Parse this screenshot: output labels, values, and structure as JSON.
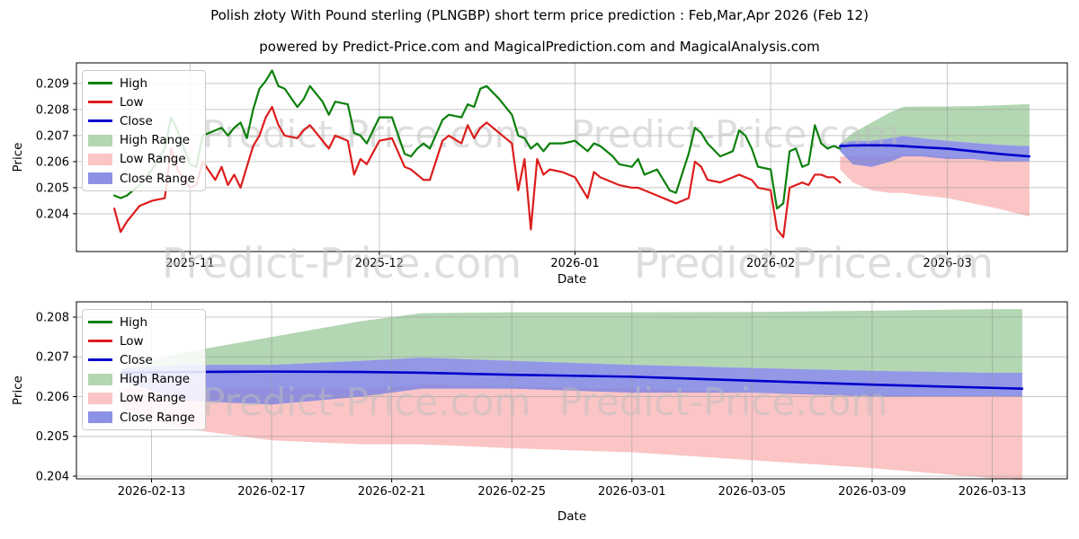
{
  "title": "Polish złoty With Pound sterling (PLNGBP) short term price prediction : Feb,Mar,Apr 2026 (Feb 12)",
  "subtitle": "powered by Predict-Price.com and MagicalPrediction.com and MagicalAnalysis.com",
  "watermark_text": "Predict-Price.com",
  "colors": {
    "high": "#0c800c",
    "low": "#dd1d1d",
    "close": "#0000cc",
    "high_range": "#b3d6b3",
    "low_range": "#fbc5c5",
    "close_range": "#7f85e2",
    "grid": "#999999",
    "axis": "#000000",
    "watermark": "#bdbdbd"
  },
  "legend": {
    "items": [
      {
        "label": "High",
        "kind": "line",
        "color_key": "high"
      },
      {
        "label": "Low",
        "kind": "line",
        "color_key": "low"
      },
      {
        "label": "Close",
        "kind": "line",
        "color_key": "close"
      },
      {
        "label": "High Range",
        "kind": "patch",
        "color_key": "high_range"
      },
      {
        "label": "Low Range",
        "kind": "patch",
        "color_key": "low_range"
      },
      {
        "label": "Close Range",
        "kind": "patch",
        "color_key": "close_range"
      }
    ]
  },
  "chart_data": [
    {
      "type": "line",
      "title": "",
      "xlabel": "Date",
      "ylabel": "Price",
      "grid": true,
      "legend_position": "upper left",
      "xlim": [
        "2025-10-14",
        "2026-03-20"
      ],
      "ylim": [
        0.20255,
        0.20979
      ],
      "y_ticks": [
        0.209,
        0.208,
        0.207,
        0.206,
        0.205,
        0.204
      ],
      "x_ticks": [
        {
          "label": "2025-11",
          "date": "2025-11-01"
        },
        {
          "label": "2025-12",
          "date": "2025-12-01"
        },
        {
          "label": "2026-01",
          "date": "2026-01-01"
        },
        {
          "label": "2026-02",
          "date": "2026-02-01"
        },
        {
          "label": "2026-03",
          "date": "2026-03-01"
        }
      ],
      "historical": {
        "dates": [
          "2025-10-20",
          "2025-10-21",
          "2025-10-22",
          "2025-10-24",
          "2025-10-26",
          "2025-10-28",
          "2025-10-29",
          "2025-10-30",
          "2025-11-01",
          "2025-11-02",
          "2025-11-03",
          "2025-11-05",
          "2025-11-06",
          "2025-11-07",
          "2025-11-08",
          "2025-11-09",
          "2025-11-10",
          "2025-11-11",
          "2025-11-12",
          "2025-11-13",
          "2025-11-14",
          "2025-11-15",
          "2025-11-16",
          "2025-11-18",
          "2025-11-19",
          "2025-11-20",
          "2025-11-22",
          "2025-11-23",
          "2025-11-24",
          "2025-11-26",
          "2025-11-27",
          "2025-11-28",
          "2025-11-29",
          "2025-12-01",
          "2025-12-03",
          "2025-12-05",
          "2025-12-06",
          "2025-12-07",
          "2025-12-08",
          "2025-12-09",
          "2025-12-11",
          "2025-12-12",
          "2025-12-14",
          "2025-12-15",
          "2025-12-16",
          "2025-12-17",
          "2025-12-18",
          "2025-12-20",
          "2025-12-21",
          "2025-12-22",
          "2025-12-23",
          "2025-12-24",
          "2025-12-25",
          "2025-12-26",
          "2025-12-27",
          "2025-12-28",
          "2025-12-30",
          "2026-01-01",
          "2026-01-03",
          "2026-01-04",
          "2026-01-05",
          "2026-01-07",
          "2026-01-08",
          "2026-01-10",
          "2026-01-11",
          "2026-01-12",
          "2026-01-14",
          "2026-01-16",
          "2026-01-17",
          "2026-01-19",
          "2026-01-20",
          "2026-01-21",
          "2026-01-22",
          "2026-01-24",
          "2026-01-26",
          "2026-01-27",
          "2026-01-28",
          "2026-01-29",
          "2026-01-30",
          "2026-02-01",
          "2026-02-02",
          "2026-02-03",
          "2026-02-04",
          "2026-02-05",
          "2026-02-06",
          "2026-02-07",
          "2026-02-08",
          "2026-02-09",
          "2026-02-10",
          "2026-02-11",
          "2026-02-12"
        ],
        "high": [
          0.2047,
          0.2046,
          0.2047,
          0.2051,
          0.2057,
          0.2065,
          0.2077,
          0.2072,
          0.2059,
          0.2058,
          0.207,
          0.2072,
          0.2073,
          0.207,
          0.2073,
          0.2075,
          0.2069,
          0.208,
          0.2088,
          0.2091,
          0.2095,
          0.2089,
          0.2088,
          0.2081,
          0.2084,
          0.2089,
          0.2083,
          0.2078,
          0.2083,
          0.2082,
          0.2071,
          0.207,
          0.2067,
          0.2077,
          0.2077,
          0.2063,
          0.2062,
          0.2065,
          0.2067,
          0.2065,
          0.2076,
          0.2078,
          0.2077,
          0.2082,
          0.2081,
          0.2088,
          0.2089,
          0.2084,
          0.2081,
          0.2078,
          0.207,
          0.2069,
          0.2065,
          0.2067,
          0.2064,
          0.2067,
          0.2067,
          0.2068,
          0.2064,
          0.2067,
          0.2066,
          0.2062,
          0.2059,
          0.2058,
          0.2061,
          0.2055,
          0.2057,
          0.2049,
          0.2048,
          0.2063,
          0.2073,
          0.2071,
          0.2067,
          0.2062,
          0.2064,
          0.2072,
          0.207,
          0.2065,
          0.2058,
          0.2057,
          0.2042,
          0.2044,
          0.2064,
          0.2065,
          0.2058,
          0.2059,
          0.2074,
          0.2067,
          0.2065,
          0.2066,
          0.2065
        ],
        "low": [
          0.2042,
          0.2033,
          0.2037,
          0.2043,
          0.2045,
          0.2046,
          0.2065,
          0.2057,
          0.205,
          0.2051,
          0.206,
          0.2053,
          0.2058,
          0.2051,
          0.2055,
          0.205,
          0.2058,
          0.2066,
          0.207,
          0.2077,
          0.2081,
          0.2074,
          0.207,
          0.2069,
          0.2072,
          0.2074,
          0.2068,
          0.2065,
          0.207,
          0.2068,
          0.2055,
          0.2061,
          0.2059,
          0.2068,
          0.2069,
          0.2058,
          0.2057,
          0.2055,
          0.2053,
          0.2053,
          0.2068,
          0.207,
          0.2067,
          0.2074,
          0.2069,
          0.2073,
          0.2075,
          0.2071,
          0.2069,
          0.2067,
          0.2049,
          0.2061,
          0.2034,
          0.2061,
          0.2055,
          0.2057,
          0.2056,
          0.2054,
          0.2046,
          0.2056,
          0.2054,
          0.2052,
          0.2051,
          0.205,
          0.205,
          0.2049,
          0.2047,
          0.2045,
          0.2044,
          0.2046,
          0.206,
          0.2058,
          0.2053,
          0.2052,
          0.2054,
          0.2055,
          0.2054,
          0.2053,
          0.205,
          0.2049,
          0.2034,
          0.2031,
          0.205,
          0.2051,
          0.2052,
          0.2051,
          0.2055,
          0.2055,
          0.2054,
          0.2054,
          0.2052
        ]
      },
      "prediction": {
        "dates": [
          "2026-02-12",
          "2026-02-14",
          "2026-02-17",
          "2026-02-20",
          "2026-02-22",
          "2026-02-25",
          "2026-03-01",
          "2026-03-05",
          "2026-03-09",
          "2026-03-13",
          "2026-03-14"
        ],
        "high_range_top": [
          0.2067,
          0.2071,
          0.2075,
          0.2079,
          0.2081,
          0.20812,
          0.20812,
          0.20813,
          0.20816,
          0.2082,
          0.2082
        ],
        "close_range_top": [
          0.2067,
          0.2068,
          0.2068,
          0.2069,
          0.20698,
          0.2069,
          0.2068,
          0.20672,
          0.20665,
          0.2066,
          0.2066
        ],
        "close": [
          0.2066,
          0.20662,
          0.20663,
          0.20662,
          0.2066,
          0.20655,
          0.2065,
          0.2064,
          0.2063,
          0.20622,
          0.2062
        ],
        "close_range_bottom": [
          0.2064,
          0.2059,
          0.2058,
          0.206,
          0.2062,
          0.2062,
          0.2061,
          0.2061,
          0.206,
          0.206,
          0.206
        ],
        "low_range_top": [
          0.2062,
          0.2062,
          0.2062,
          0.2062,
          0.2063,
          0.20625,
          0.2062,
          0.2061,
          0.20605,
          0.206,
          0.206
        ],
        "low_range_bottom": [
          0.2057,
          0.2052,
          0.2049,
          0.2048,
          0.2048,
          0.2047,
          0.2046,
          0.2044,
          0.2042,
          0.20395,
          0.2039
        ]
      }
    },
    {
      "type": "line",
      "title": "",
      "xlabel": "Date",
      "ylabel": "Price",
      "grid": true,
      "legend_position": "upper left",
      "series_source": "prediction of chart 1 (zoomed forecast view)",
      "xlim": [
        "2026-02-10T12:00:00.000Z",
        "2026-03-15T12:00:00.000Z"
      ],
      "ylim": [
        0.203932,
        0.208384
      ],
      "y_ticks": [
        0.208,
        0.207,
        0.206,
        0.205,
        0.204
      ],
      "x_ticks": [
        {
          "label": "2026-02-13",
          "date": "2026-02-13"
        },
        {
          "label": "2026-02-17",
          "date": "2026-02-17"
        },
        {
          "label": "2026-02-21",
          "date": "2026-02-21"
        },
        {
          "label": "2026-02-25",
          "date": "2026-02-25"
        },
        {
          "label": "2026-03-01",
          "date": "2026-03-01"
        },
        {
          "label": "2026-03-05",
          "date": "2026-03-05"
        },
        {
          "label": "2026-03-09",
          "date": "2026-03-09"
        },
        {
          "label": "2026-03-13",
          "date": "2026-03-13"
        }
      ]
    }
  ]
}
